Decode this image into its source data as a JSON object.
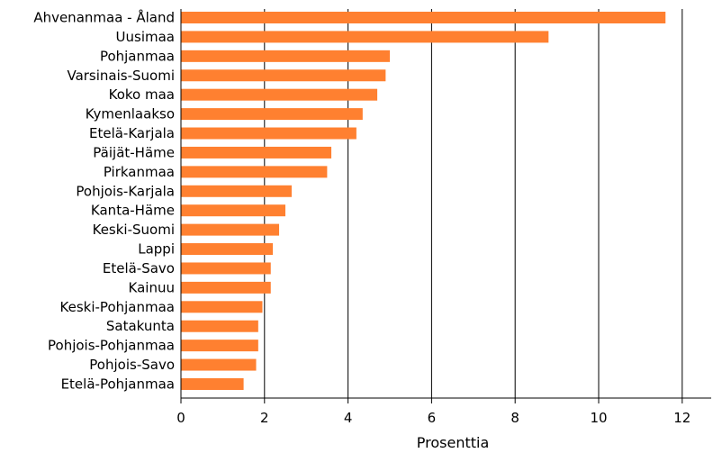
{
  "chart_data": {
    "type": "bar",
    "orientation": "horizontal",
    "title": "",
    "xlabel": "Prosenttia",
    "ylabel": "",
    "xlim": [
      0,
      12.5
    ],
    "xticks": [
      0,
      2,
      4,
      6,
      8,
      10,
      12
    ],
    "grid": "vertical",
    "bar_color": "#ff8030",
    "categories": [
      "Ahvenanmaa - Åland",
      "Uusimaa",
      "Pohjanmaa",
      "Varsinais-Suomi",
      "Koko maa",
      "Kymenlaakso",
      "Etelä-Karjala",
      "Päijät-Häme",
      "Pirkanmaa",
      "Pohjois-Karjala",
      "Kanta-Häme",
      "Keski-Suomi",
      "Lappi",
      "Etelä-Savo",
      "Kainuu",
      "Keski-Pohjanmaa",
      "Satakunta",
      "Pohjois-Pohjanmaa",
      "Pohjois-Savo",
      "Etelä-Pohjanmaa"
    ],
    "values": [
      11.6,
      8.8,
      5.0,
      4.9,
      4.7,
      4.35,
      4.2,
      3.6,
      3.5,
      2.65,
      2.5,
      2.35,
      2.2,
      2.15,
      2.15,
      1.95,
      1.85,
      1.85,
      1.8,
      1.5
    ]
  }
}
